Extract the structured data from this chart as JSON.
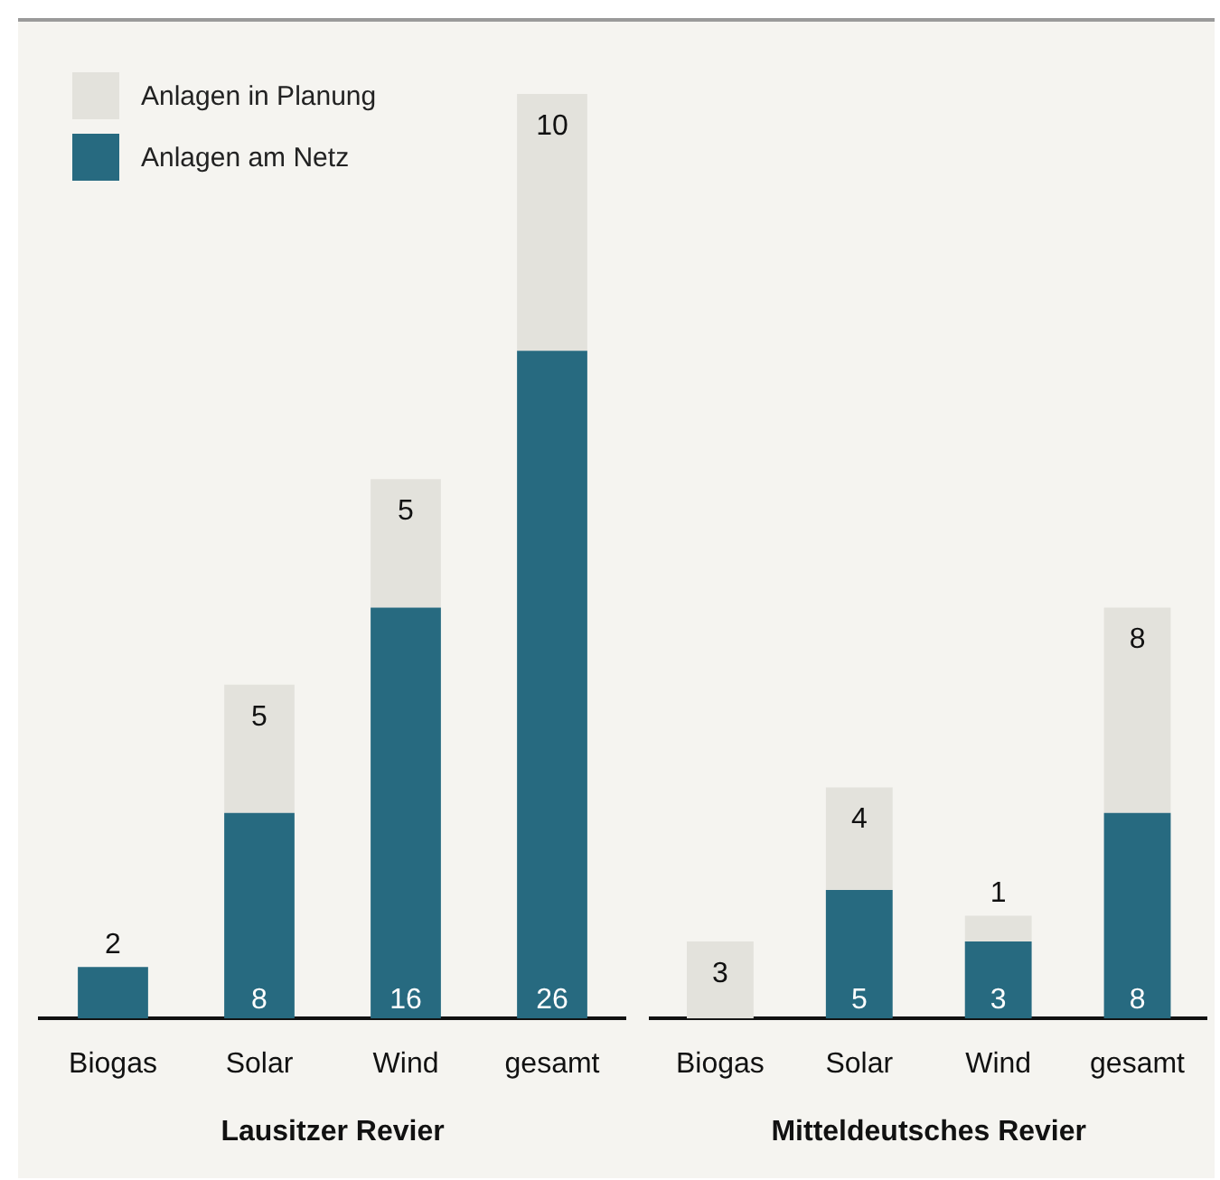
{
  "chart_data": [
    {
      "type": "bar",
      "stacked": true,
      "categories": [
        "Biogas",
        "Solar",
        "Wind",
        "gesamt"
      ],
      "xlabel": "Lausitzer Revier",
      "tick_labels": "x",
      "legend": "top left",
      "grid": false,
      "series": [
        {
          "name": "Anlagen am Netz",
          "color": "#276a80",
          "values": [
            2,
            8,
            16,
            26
          ],
          "value_labels": [
            "2",
            "8",
            "16",
            "26"
          ]
        },
        {
          "name": "Anlagen in Planung",
          "color": "#e3e2dc",
          "values": [
            0,
            5,
            5,
            10
          ],
          "value_labels": [
            null,
            "5",
            "5",
            "10"
          ]
        }
      ]
    },
    {
      "type": "bar",
      "stacked": true,
      "categories": [
        "Biogas",
        "Solar",
        "Wind",
        "gesamt"
      ],
      "xlabel": "Mitteldeutsches Revier",
      "tick_labels": "x",
      "grid": false,
      "series": [
        {
          "color": "#276a80",
          "values": [
            0,
            5,
            3,
            8
          ],
          "value_labels": [
            null,
            "5",
            "3",
            "8"
          ]
        },
        {
          "color": "#e3e2dc",
          "values": [
            3,
            4,
            1,
            8
          ],
          "value_labels": [
            "3",
            "4",
            "1",
            "8"
          ]
        }
      ]
    }
  ]
}
